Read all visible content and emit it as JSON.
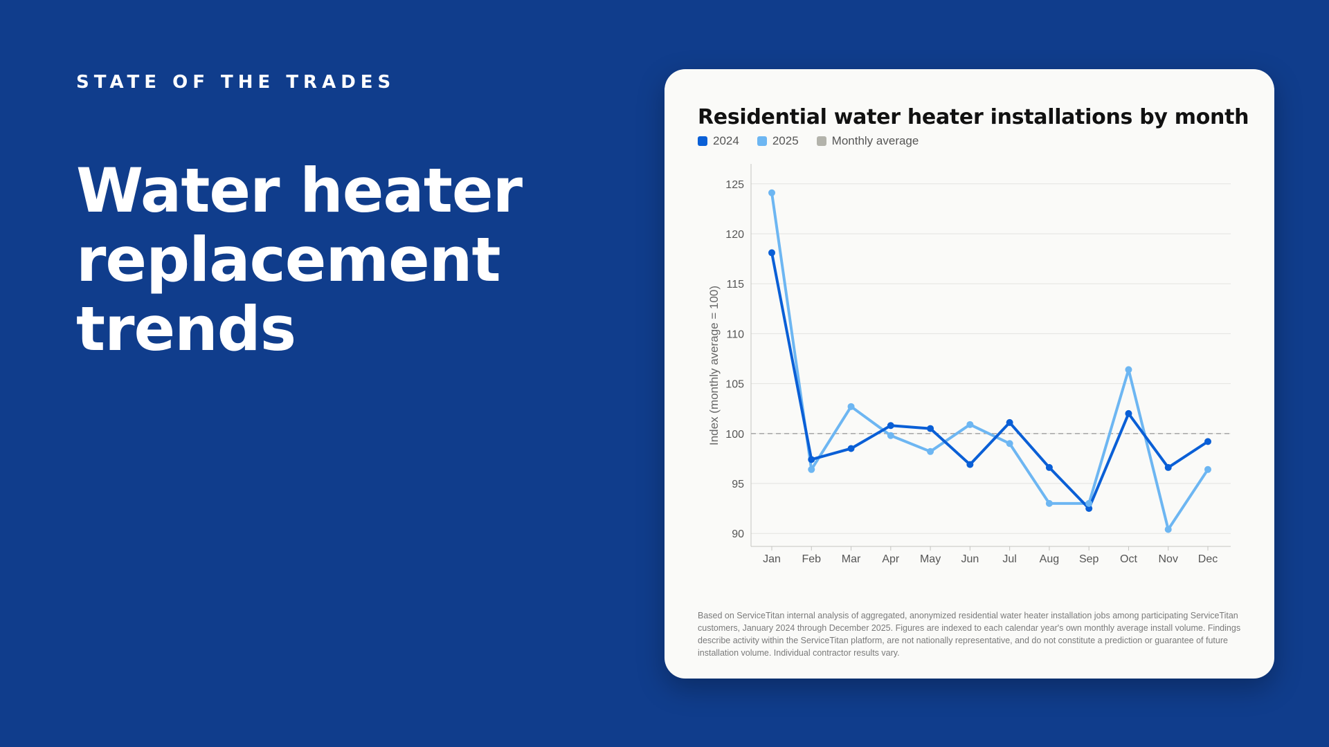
{
  "hero": {
    "eyebrow": "STATE OF THE TRADES",
    "title_lines": [
      "Water heater",
      "replacement",
      "trends"
    ]
  },
  "chart_data": {
    "type": "line",
    "title": "Residential water heater installations by month",
    "xlabel": "",
    "ylabel": "Index (monthly average = 100)",
    "ylim": [
      88.7,
      126.3
    ],
    "yticks": [
      90,
      95,
      100,
      105,
      110,
      115,
      120,
      125
    ],
    "grid": true,
    "legend_position": "top-left",
    "categories": [
      "Jan",
      "Feb",
      "Mar",
      "Apr",
      "May",
      "Jun",
      "Jul",
      "Aug",
      "Sep",
      "Oct",
      "Nov",
      "Dec"
    ],
    "series": [
      {
        "name": "2024",
        "color": "#0a5fd6",
        "values": [
          118.1,
          97.4,
          98.5,
          100.8,
          100.5,
          96.9,
          101.1,
          96.6,
          92.5,
          102.0,
          96.6,
          99.2
        ]
      },
      {
        "name": "2025",
        "color": "#6db6f2",
        "values": [
          124.1,
          96.4,
          102.7,
          99.8,
          98.2,
          100.9,
          99.0,
          93.0,
          93.0,
          106.4,
          90.4,
          96.4
        ]
      }
    ],
    "reference_line": {
      "name": "Monthly average",
      "value": 100,
      "color": "#aaaaaa",
      "legend_color": "#b3b3ab"
    },
    "footnote": "Based on ServiceTitan internal analysis of aggregated, anonymized residential water heater installation jobs among participating ServiceTitan customers, January 2024 through December 2025. Figures are indexed to each calendar year's own monthly average install volume. Findings describe activity within the ServiceTitan platform, are not nationally representative, and do not constitute a prediction or guarantee of future installation volume. Individual contractor results vary."
  }
}
